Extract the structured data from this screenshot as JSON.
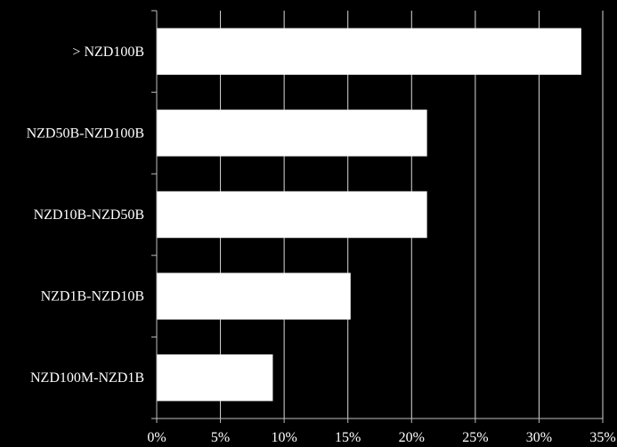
{
  "chart_data": {
    "type": "bar",
    "orientation": "horizontal",
    "categories": [
      "> NZD100B",
      "NZD50B-NZD100B",
      "NZD10B-NZD50B",
      "NZD1B-NZD10B",
      "NZD100M-NZD1B"
    ],
    "values": [
      33.3,
      21.2,
      21.2,
      15.2,
      9.1
    ],
    "xlim": [
      0,
      35
    ],
    "xticks": [
      0,
      5,
      10,
      15,
      20,
      25,
      30,
      35
    ],
    "xtick_labels": [
      "0%",
      "5%",
      "10%",
      "15%",
      "20%",
      "25%",
      "30%",
      "35%"
    ],
    "title": "",
    "xlabel": "",
    "ylabel": "",
    "grid": "vertical",
    "legend": "none"
  },
  "colors": {
    "background": "#000000",
    "bar_fill": "#ffffff",
    "gridline": "#ffffff",
    "axis": "#bfbfbf",
    "text": "#ffffff"
  }
}
